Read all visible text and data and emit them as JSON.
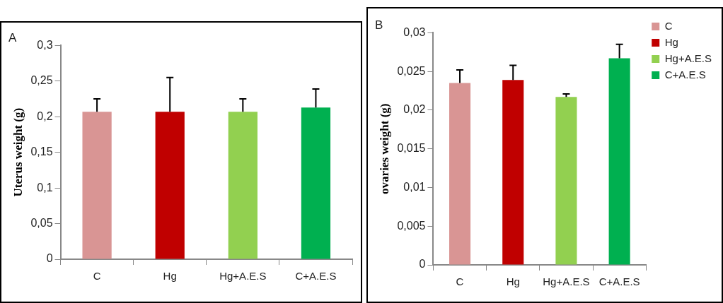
{
  "chart_data": [
    {
      "type": "bar",
      "title": "A",
      "ylabel": "Uterus weight (g)",
      "categories": [
        "C",
        "Hg",
        "Hg+A.E.S",
        "C+A.E.S"
      ],
      "series": [
        {
          "colors": [
            "#d99594",
            "#c00000",
            "#92d050",
            "#00b050"
          ],
          "values": [
            0.207,
            0.207,
            0.207,
            0.213
          ],
          "errors": [
            [
              0.207,
              0.225
            ],
            [
              0.207,
              0.255
            ],
            [
              0.207,
              0.225
            ],
            [
              0.213,
              0.239
            ]
          ]
        }
      ],
      "ylim": [
        0,
        0.3
      ],
      "yticks": [
        0,
        {
          "value": 0.05,
          "label": "0,05"
        },
        {
          "value": 0.1,
          "label": "0,1"
        },
        {
          "value": 0.15,
          "label": "0,15"
        },
        {
          "value": 0.2,
          "label": "0,2"
        },
        {
          "value": 0.25,
          "label": "0,25"
        },
        {
          "value": 0.3,
          "label": "0,3"
        }
      ]
    },
    {
      "type": "bar",
      "title": "B",
      "ylabel": "ovaries weight (g)",
      "legend": "top right",
      "categories": [
        "C",
        "Hg",
        "Hg+A.E.S",
        "C+A.E.S"
      ],
      "series": [
        {
          "name": "C",
          "color": "#d99594",
          "values": [
            0.0235,
            null,
            null,
            null
          ],
          "errors": [
            [
              0.0235,
              0.0252
            ],
            null,
            null,
            null
          ]
        },
        {
          "name": "Hg",
          "color": "#c00000",
          "values": [
            null,
            0.0239,
            null,
            null
          ],
          "errors": [
            null,
            [
              0.0239,
              0.0258
            ],
            null,
            null
          ]
        },
        {
          "name": "Hg+A.E.S",
          "color": "#92d050",
          "values": [
            null,
            null,
            0.0217,
            null
          ],
          "errors": [
            null,
            null,
            [
              0.0217,
              0.0221
            ],
            null
          ]
        },
        {
          "name": "C+A.E.S",
          "color": "#00b050",
          "values": [
            null,
            null,
            null,
            0.0267
          ],
          "errors": [
            null,
            null,
            null,
            [
              0.0267,
              0.0285
            ]
          ]
        }
      ],
      "ylim": [
        0,
        0.03
      ],
      "yticks": [
        0,
        {
          "value": 0.005,
          "label": "0,005"
        },
        {
          "value": 0.01,
          "label": "0,01"
        },
        {
          "value": 0.015,
          "label": "0,015"
        },
        {
          "value": 0.02,
          "label": "0,02"
        },
        {
          "value": 0.025,
          "label": "0,025"
        },
        {
          "value": 0.03,
          "label": "0,03"
        }
      ]
    }
  ]
}
